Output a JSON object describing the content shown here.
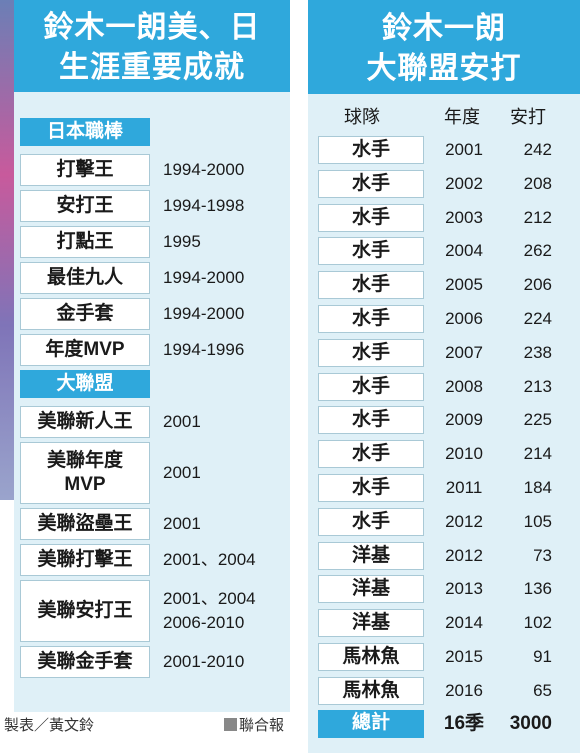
{
  "left": {
    "title_line1": "鈴木一朗美、日",
    "title_line2": "生涯重要成就",
    "japan": {
      "header": "日本職棒",
      "items": [
        {
          "award": "打擊王",
          "years": "1994-2000"
        },
        {
          "award": "安打王",
          "years": "1994-1998"
        },
        {
          "award": "打點王",
          "years": "1995"
        },
        {
          "award": "最佳九人",
          "years": "1994-2000"
        },
        {
          "award": "金手套",
          "years": "1994-2000"
        },
        {
          "award": "年度MVP",
          "years": "1994-1996"
        }
      ]
    },
    "mlb": {
      "header": "大聯盟",
      "items": [
        {
          "award": "美聯新人王",
          "years": "2001"
        },
        {
          "award_line1": "美聯年度",
          "award_line2": "MVP",
          "years": "2001"
        },
        {
          "award": "美聯盜壘王",
          "years": "2001"
        },
        {
          "award": "美聯打擊王",
          "years": "2001、2004"
        },
        {
          "award": "美聯安打王",
          "years_line1": "2001、2004",
          "years_line2": "2006-2010"
        },
        {
          "award": "美聯金手套",
          "years": "2001-2010"
        }
      ]
    }
  },
  "right": {
    "title_line1": "鈴木一朗",
    "title_line2": "大聯盟安打",
    "headers": {
      "team": "球隊",
      "year": "年度",
      "hits": "安打"
    },
    "rows": [
      {
        "team": "水手",
        "year": "2001",
        "hits": "242"
      },
      {
        "team": "水手",
        "year": "2002",
        "hits": "208"
      },
      {
        "team": "水手",
        "year": "2003",
        "hits": "212"
      },
      {
        "team": "水手",
        "year": "2004",
        "hits": "262"
      },
      {
        "team": "水手",
        "year": "2005",
        "hits": "206"
      },
      {
        "team": "水手",
        "year": "2006",
        "hits": "224"
      },
      {
        "team": "水手",
        "year": "2007",
        "hits": "238"
      },
      {
        "team": "水手",
        "year": "2008",
        "hits": "213"
      },
      {
        "team": "水手",
        "year": "2009",
        "hits": "225"
      },
      {
        "team": "水手",
        "year": "2010",
        "hits": "214"
      },
      {
        "team": "水手",
        "year": "2011",
        "hits": "184"
      },
      {
        "team": "水手",
        "year": "2012",
        "hits": "105"
      },
      {
        "team": "洋基",
        "year": "2012",
        "hits": "73"
      },
      {
        "team": "洋基",
        "year": "2013",
        "hits": "136"
      },
      {
        "team": "洋基",
        "year": "2014",
        "hits": "102"
      },
      {
        "team": "馬林魚",
        "year": "2015",
        "hits": "91"
      },
      {
        "team": "馬林魚",
        "year": "2016",
        "hits": "65"
      }
    ],
    "total": {
      "label": "總計",
      "seasons": "16季",
      "hits": "3000"
    }
  },
  "footer": {
    "maker": "製表／黃文鈴",
    "source": "聯合報"
  }
}
